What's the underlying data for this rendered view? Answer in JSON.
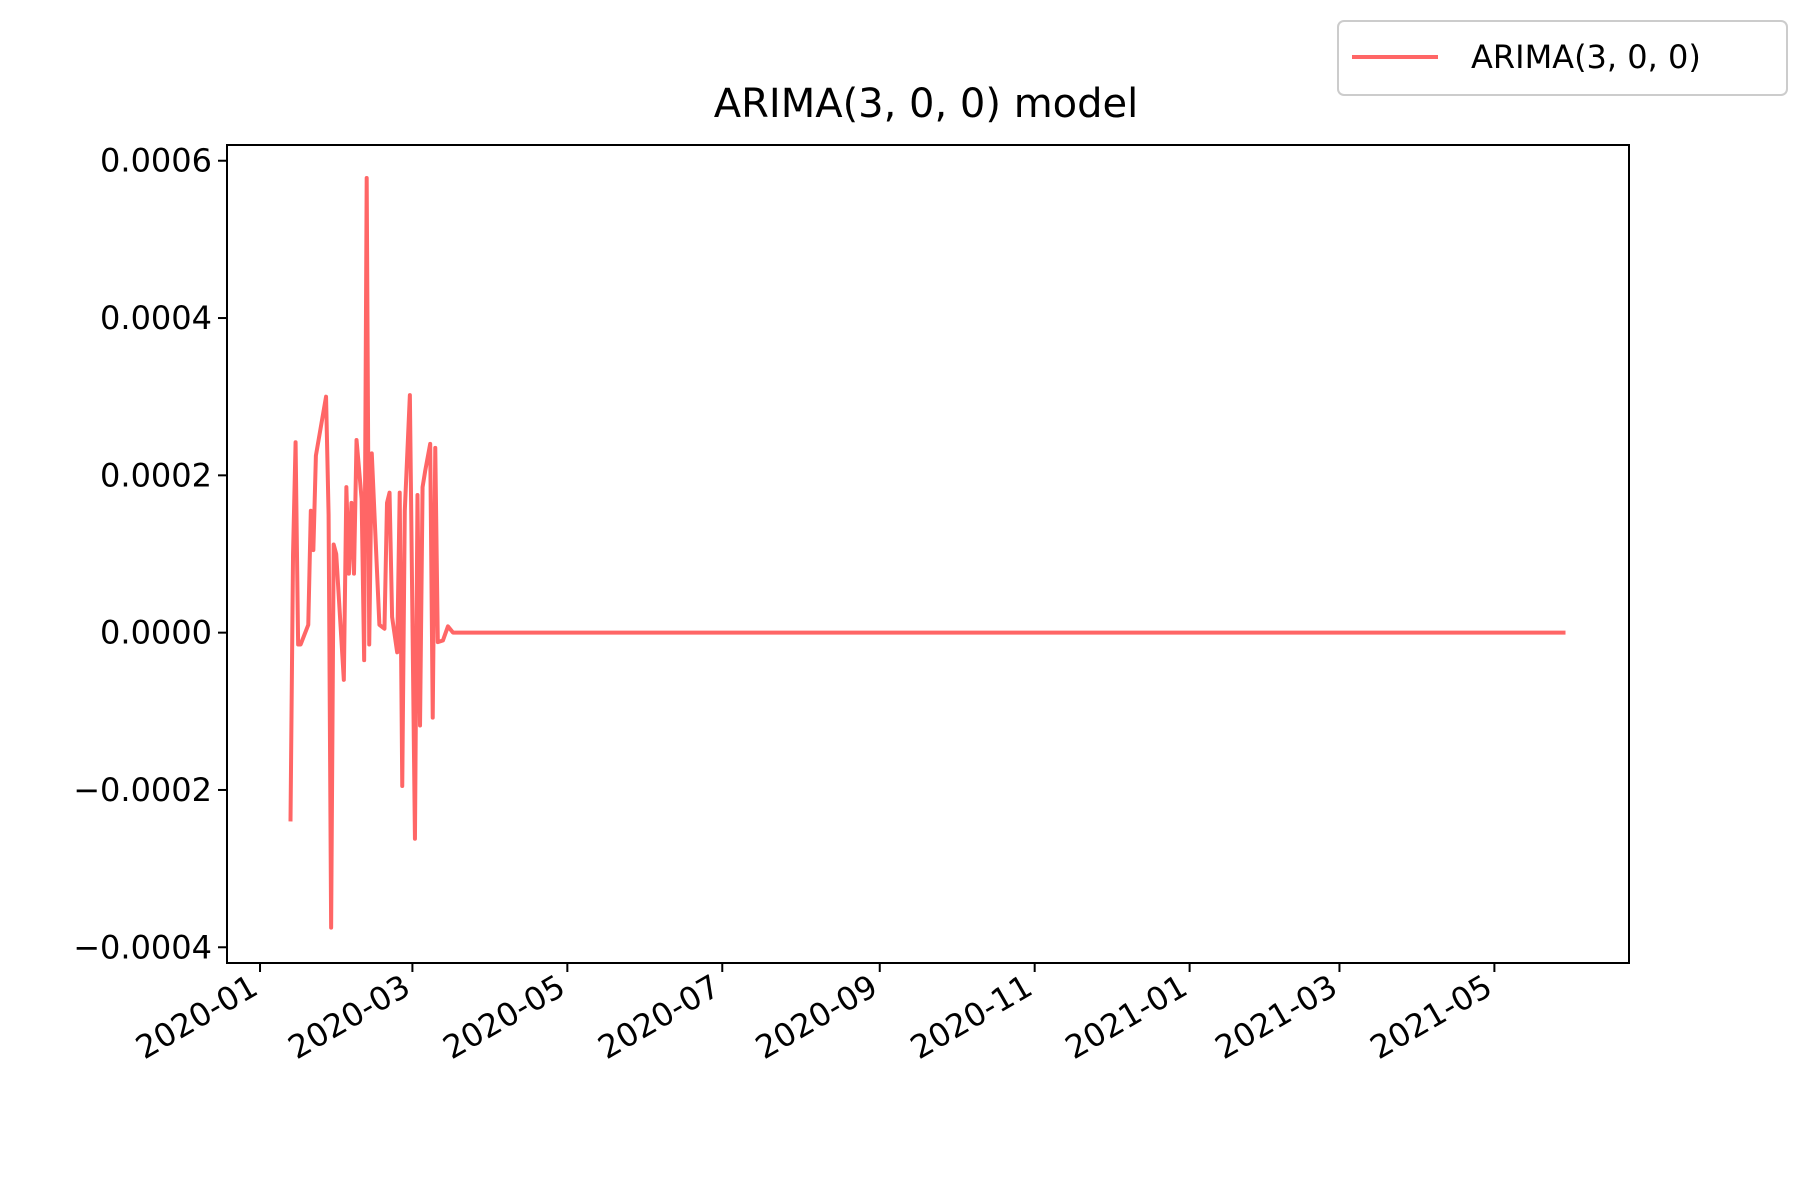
{
  "chart_data": {
    "type": "line",
    "title": "ARIMA(3, 0, 0) model",
    "xlabel": "",
    "ylabel": "",
    "x_axis_type": "date",
    "xlim": [
      "2019-12-19",
      "2021-06-23"
    ],
    "ylim": [
      -0.00042,
      0.00062
    ],
    "x_ticks": [
      "2020-01",
      "2020-03",
      "2020-05",
      "2020-07",
      "2020-09",
      "2020-11",
      "2021-01",
      "2021-03",
      "2021-05"
    ],
    "y_ticks": [
      -0.0004,
      -0.0002,
      0.0,
      0.0002,
      0.0004,
      0.0006
    ],
    "y_tick_labels": [
      "−0.0004",
      "−0.0002",
      "0.0000",
      "0.0002",
      "0.0004",
      "0.0006"
    ],
    "grid": false,
    "legend": {
      "position": "top-right",
      "entries": [
        "ARIMA(3, 0, 0)"
      ]
    },
    "series": [
      {
        "name": "ARIMA(3, 0, 0)",
        "color": "#ff6666",
        "points": [
          [
            "2020-01-13",
            -0.00024
          ],
          [
            "2020-01-14",
            0.0001
          ],
          [
            "2020-01-15",
            0.000242
          ],
          [
            "2020-01-16",
            -1.5e-05
          ],
          [
            "2020-01-17",
            -1.5e-05
          ],
          [
            "2020-01-20",
            1e-05
          ],
          [
            "2020-01-21",
            0.000155
          ],
          [
            "2020-01-22",
            0.000105
          ],
          [
            "2020-01-23",
            0.000225
          ],
          [
            "2020-01-27",
            0.0003
          ],
          [
            "2020-01-28",
            0.00015
          ],
          [
            "2020-01-29",
            -0.000375
          ],
          [
            "2020-01-30",
            0.000112
          ],
          [
            "2020-01-31",
            0.0001
          ],
          [
            "2020-02-03",
            -6e-05
          ],
          [
            "2020-02-04",
            0.000185
          ],
          [
            "2020-02-05",
            7.5e-05
          ],
          [
            "2020-02-06",
            0.000165
          ],
          [
            "2020-02-07",
            7.5e-05
          ],
          [
            "2020-02-08",
            0.000245
          ],
          [
            "2020-02-10",
            0.00017
          ],
          [
            "2020-02-11",
            -3.5e-05
          ],
          [
            "2020-02-12",
            0.000578
          ],
          [
            "2020-02-13",
            -1.5e-05
          ],
          [
            "2020-02-14",
            0.000228
          ],
          [
            "2020-02-17",
            1e-05
          ],
          [
            "2020-02-19",
            5e-06
          ],
          [
            "2020-02-20",
            0.000165
          ],
          [
            "2020-02-21",
            0.000178
          ],
          [
            "2020-02-22",
            2e-05
          ],
          [
            "2020-02-24",
            -2.5e-05
          ],
          [
            "2020-02-25",
            0.000178
          ],
          [
            "2020-02-26",
            -0.000195
          ],
          [
            "2020-02-27",
            0.000155
          ],
          [
            "2020-02-29",
            0.000302
          ],
          [
            "2020-03-02",
            -0.000262
          ],
          [
            "2020-03-03",
            0.000175
          ],
          [
            "2020-03-04",
            -0.000118
          ],
          [
            "2020-03-05",
            0.000185
          ],
          [
            "2020-03-06",
            0.000205
          ],
          [
            "2020-03-08",
            0.00024
          ],
          [
            "2020-03-09",
            -0.000108
          ],
          [
            "2020-03-10",
            0.000235
          ],
          [
            "2020-03-11",
            -1.2e-05
          ],
          [
            "2020-03-13",
            -1e-05
          ],
          [
            "2020-03-15",
            8e-06
          ],
          [
            "2020-03-17",
            0.0
          ],
          [
            "2020-04-15",
            0.0
          ],
          [
            "2020-08-01",
            0.0
          ],
          [
            "2021-01-01",
            0.0
          ],
          [
            "2021-05-29",
            0.0
          ]
        ]
      }
    ]
  }
}
